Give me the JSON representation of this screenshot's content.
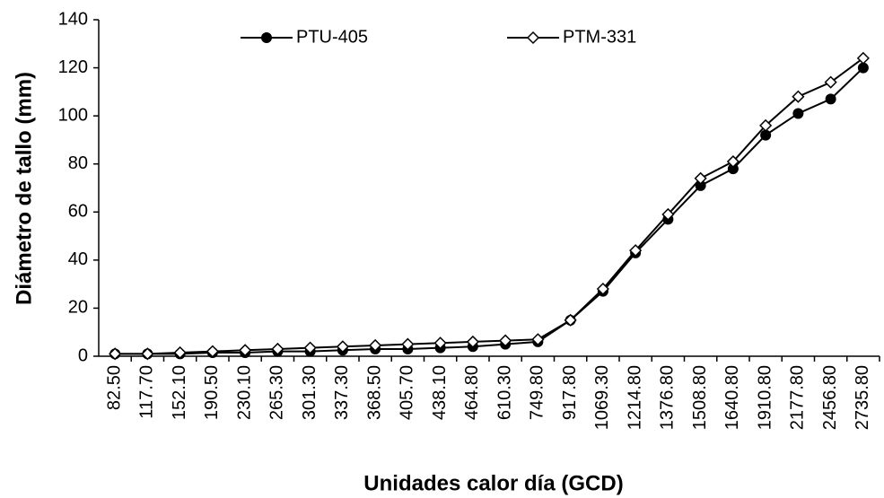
{
  "chart_data": {
    "type": "line",
    "x_label": "Unidades calor día (GCD)",
    "y_label": "Diámetro de tallo (mm)",
    "categories": [
      "82.50",
      "117.70",
      "152.10",
      "190.50",
      "230.10",
      "265.30",
      "301.30",
      "337.30",
      "368.50",
      "405.70",
      "438.10",
      "464.80",
      "610.30",
      "749.80",
      "917.80",
      "1069.30",
      "1214.80",
      "1376.80",
      "1508.80",
      "1640.80",
      "1910.80",
      "2177.80",
      "2456.80",
      "2735.80"
    ],
    "series": [
      {
        "name": "PTU-405",
        "color": "#000000",
        "marker": "circle",
        "values": [
          1,
          1,
          1,
          1.5,
          1.5,
          2,
          2,
          2.5,
          3,
          3,
          3.5,
          4,
          5,
          6,
          15,
          27,
          43,
          57,
          71,
          78,
          92,
          101,
          107,
          120
        ]
      },
      {
        "name": "PTM-331",
        "color": "#000000",
        "marker": "diamond",
        "values": [
          1,
          1,
          1.5,
          2,
          2.5,
          3,
          3.5,
          4,
          4.5,
          5,
          5.5,
          6,
          6.5,
          7,
          15,
          28,
          44,
          59,
          74,
          81,
          96,
          108,
          114,
          124
        ]
      }
    ],
    "ylim": [
      0,
      140
    ],
    "yticks": [
      0,
      20,
      40,
      60,
      80,
      100,
      120,
      140
    ],
    "legend": "top"
  }
}
